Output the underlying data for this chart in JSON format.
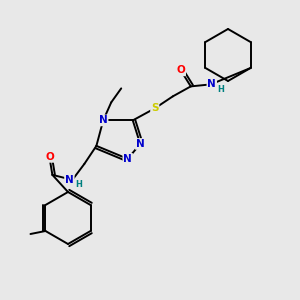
{
  "background_color": "#e8e8e8",
  "bond_color": "#000000",
  "atom_colors": {
    "N": "#0000cc",
    "O": "#ff0000",
    "S": "#cccc00",
    "C": "#000000",
    "H": "#008080"
  }
}
